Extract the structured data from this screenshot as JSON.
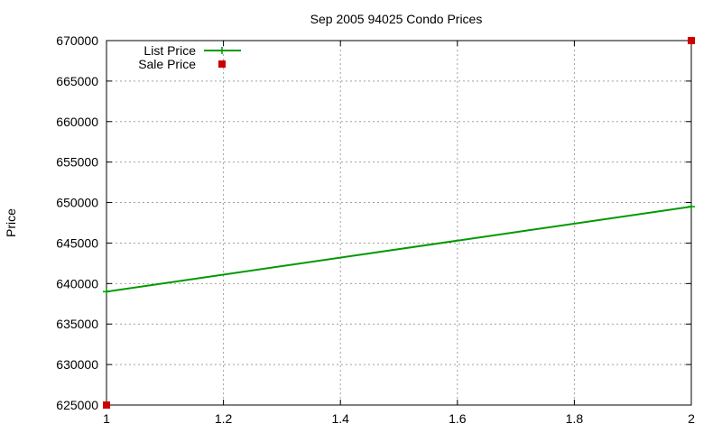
{
  "chart_data": {
    "type": "line",
    "title": "Sep 2005 94025 Condo Prices",
    "xlabel": "",
    "ylabel": "Price",
    "xlim": [
      1,
      2
    ],
    "ylim": [
      625000,
      670000
    ],
    "x_ticks": [
      "1",
      "1.2",
      "1.4",
      "1.6",
      "1.8",
      "2"
    ],
    "y_ticks": [
      "625000",
      "630000",
      "635000",
      "640000",
      "645000",
      "650000",
      "655000",
      "660000",
      "665000",
      "670000"
    ],
    "grid": true,
    "legend_position": "top-left",
    "series": [
      {
        "name": "List Price",
        "style": "line-with-plus-markers",
        "color": "#009900",
        "x": [
          1,
          2
        ],
        "y": [
          639000,
          649500
        ]
      },
      {
        "name": "Sale Price",
        "style": "square-markers",
        "color": "#cc0000",
        "x": [
          1,
          2
        ],
        "y": [
          625000,
          670000
        ]
      }
    ]
  }
}
